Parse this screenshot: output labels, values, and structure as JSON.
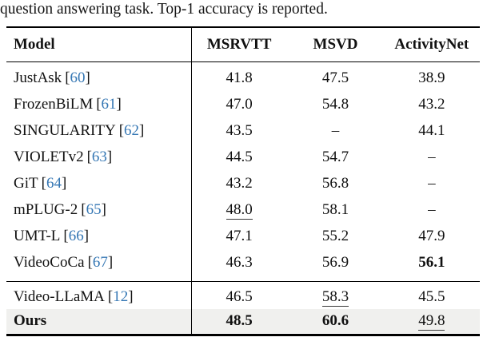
{
  "caption": "question answering task. Top-1 accuracy is reported.",
  "punct": {
    "lbracket": "[",
    "rbracket": "]"
  },
  "colors": {
    "cite_blue": "#3577b4",
    "highlight_gray": "#f0f0ee",
    "rule_black": "#000000"
  },
  "table": {
    "headers": {
      "model": "Model",
      "col1": "MSRVTT",
      "col2": "MSVD",
      "col3": "ActivityNet"
    },
    "rows": [
      {
        "name": "JustAsk",
        "cite": "60",
        "msrvtt": "41.8",
        "msvd": "47.5",
        "activitynet": "38.9"
      },
      {
        "name": "FrozenBiLM",
        "cite": "61",
        "msrvtt": "47.0",
        "msvd": "54.8",
        "activitynet": "43.2"
      },
      {
        "name": "SINGULARITY",
        "cite": "62",
        "msrvtt": "43.5",
        "msvd": "–",
        "activitynet": "44.1"
      },
      {
        "name": "VIOLETv2",
        "cite": "63",
        "msrvtt": "44.5",
        "msvd": "54.7",
        "activitynet": "–"
      },
      {
        "name": "GiT",
        "cite": "64",
        "msrvtt": "43.2",
        "msvd": "56.8",
        "activitynet": "–"
      },
      {
        "name": "mPLUG-2",
        "cite": "65",
        "msrvtt": "48.0",
        "msvd": "58.1",
        "activitynet": "–"
      },
      {
        "name": "UMT-L",
        "cite": "66",
        "msrvtt": "47.1",
        "msvd": "55.2",
        "activitynet": "47.9"
      },
      {
        "name": "VideoCoCa",
        "cite": "67",
        "msrvtt": "46.3",
        "msvd": "56.9",
        "activitynet": "56.1"
      }
    ],
    "footer_rows": [
      {
        "name": "Video-LLaMA",
        "cite": "12",
        "msrvtt": "46.5",
        "msvd": "58.3",
        "activitynet": "45.5"
      },
      {
        "name": "Ours",
        "msrvtt": "48.5",
        "msvd": "60.6",
        "activitynet": "49.8"
      }
    ]
  }
}
